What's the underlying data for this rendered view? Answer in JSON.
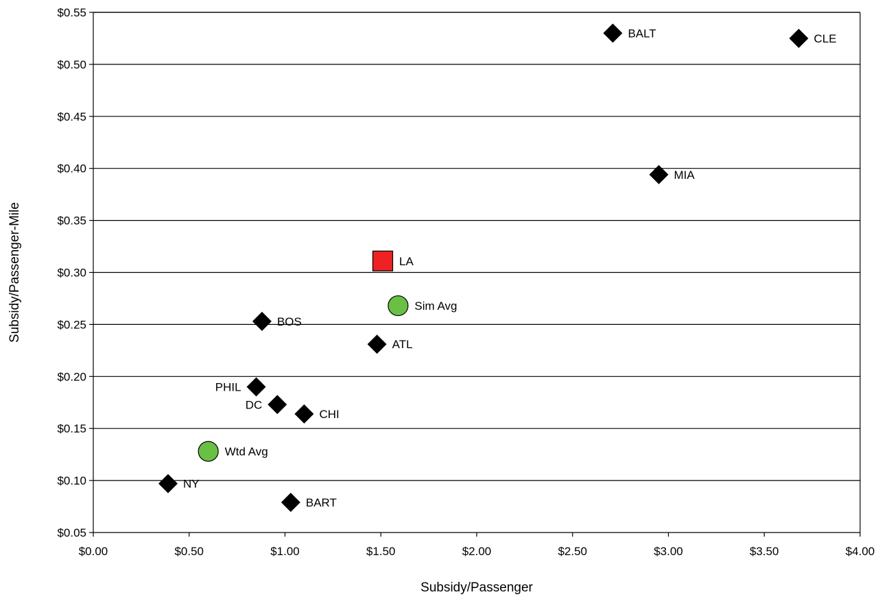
{
  "chart_data": {
    "type": "scatter",
    "title": "",
    "xlabel": "Subsidy/Passenger",
    "ylabel": "Subsidy/Passenger-Mile",
    "xlim": [
      0,
      4
    ],
    "ylim": [
      0.05,
      0.55
    ],
    "x_ticks": [
      0,
      0.5,
      1,
      1.5,
      2,
      2.5,
      3,
      3.5,
      4
    ],
    "y_ticks": [
      0.05,
      0.1,
      0.15,
      0.2,
      0.25,
      0.3,
      0.35,
      0.4,
      0.45,
      0.5,
      0.55
    ],
    "x_tick_labels": [
      "$0.00",
      "$0.50",
      "$1.00",
      "$1.50",
      "$2.00",
      "$2.50",
      "$3.00",
      "$3.50",
      "$4.00"
    ],
    "y_tick_labels": [
      "$0.05",
      "$0.10",
      "$0.15",
      "$0.20",
      "$0.25",
      "$0.30",
      "$0.35",
      "$0.40",
      "$0.45",
      "$0.50",
      "$0.55"
    ],
    "grid": "horizontal",
    "colors": {
      "diamond": "#000000",
      "square": "#ee2222",
      "circle": "#6abf45"
    },
    "points": [
      {
        "label": "BALT",
        "x": 2.71,
        "y": 0.53,
        "marker": "diamond",
        "label_side": "right"
      },
      {
        "label": "CLE",
        "x": 3.68,
        "y": 0.525,
        "marker": "diamond",
        "label_side": "right"
      },
      {
        "label": "MIA",
        "x": 2.95,
        "y": 0.394,
        "marker": "diamond",
        "label_side": "right"
      },
      {
        "label": "LA",
        "x": 1.51,
        "y": 0.311,
        "marker": "square",
        "label_side": "right"
      },
      {
        "label": "Sim Avg",
        "x": 1.59,
        "y": 0.268,
        "marker": "circle",
        "label_side": "right"
      },
      {
        "label": "BOS",
        "x": 0.88,
        "y": 0.253,
        "marker": "diamond",
        "label_side": "right"
      },
      {
        "label": "ATL",
        "x": 1.48,
        "y": 0.231,
        "marker": "diamond",
        "label_side": "right"
      },
      {
        "label": "PHIL",
        "x": 0.85,
        "y": 0.19,
        "marker": "diamond",
        "label_side": "left"
      },
      {
        "label": "DC",
        "x": 0.96,
        "y": 0.173,
        "marker": "diamond",
        "label_side": "left"
      },
      {
        "label": "CHI",
        "x": 1.1,
        "y": 0.164,
        "marker": "diamond",
        "label_side": "right"
      },
      {
        "label": "Wtd Avg",
        "x": 0.6,
        "y": 0.128,
        "marker": "circle",
        "label_side": "right"
      },
      {
        "label": "NY",
        "x": 0.39,
        "y": 0.097,
        "marker": "diamond",
        "label_side": "right"
      },
      {
        "label": "BART",
        "x": 1.03,
        "y": 0.079,
        "marker": "diamond",
        "label_side": "right"
      }
    ]
  }
}
